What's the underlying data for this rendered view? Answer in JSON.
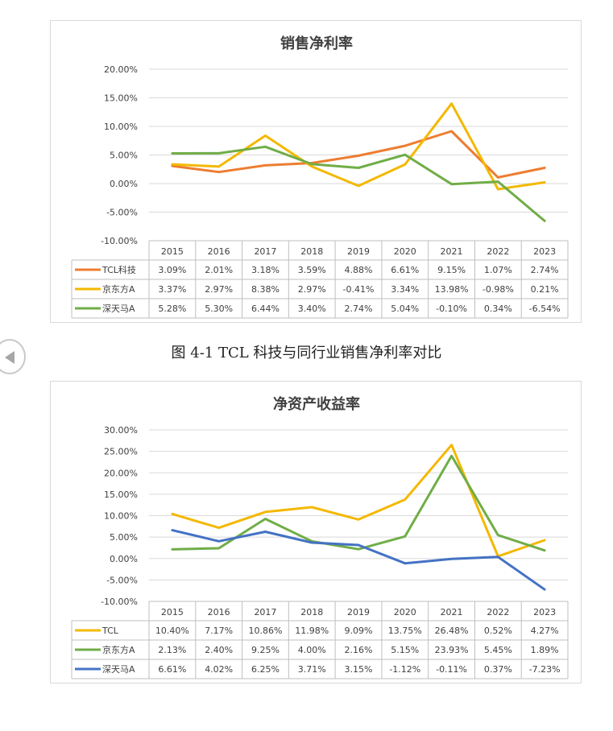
{
  "caption": "图 4-1 TCL 科技与同行业销售净利率对比",
  "colors": {
    "orange": "#ED7D31",
    "yellow": "#F4B800",
    "green": "#70AD47",
    "blue": "#4472C4"
  },
  "chart_data": [
    {
      "type": "line",
      "title": "销售净利率",
      "xlabel": "",
      "ylabel": "",
      "categories": [
        "2015",
        "2016",
        "2017",
        "2018",
        "2019",
        "2020",
        "2021",
        "2022",
        "2023"
      ],
      "ylim": [
        -10,
        20
      ],
      "yticks": [
        -10,
        -5,
        0,
        5,
        10,
        15,
        20
      ],
      "ytick_labels": [
        "-10.00%",
        "-5.00%",
        "0.00%",
        "5.00%",
        "10.00%",
        "15.00%",
        "20.00%"
      ],
      "grid": true,
      "legend": "data-table",
      "series": [
        {
          "name": "TCL科技",
          "color": "#ED7D31",
          "values": [
            3.09,
            2.01,
            3.18,
            3.59,
            4.88,
            6.61,
            9.15,
            1.07,
            2.74
          ],
          "labels": [
            "3.09%",
            "2.01%",
            "3.18%",
            "3.59%",
            "4.88%",
            "6.61%",
            "9.15%",
            "1.07%",
            "2.74%"
          ]
        },
        {
          "name": "京东方A",
          "color": "#F4B800",
          "values": [
            3.37,
            2.97,
            8.38,
            2.97,
            -0.41,
            3.34,
            13.98,
            -0.98,
            0.21
          ],
          "labels": [
            "3.37%",
            "2.97%",
            "8.38%",
            "2.97%",
            "-0.41%",
            "3.34%",
            "13.98%",
            "-0.98%",
            "0.21%"
          ]
        },
        {
          "name": "深天马A",
          "color": "#70AD47",
          "values": [
            5.28,
            5.3,
            6.44,
            3.4,
            2.74,
            5.04,
            -0.1,
            0.34,
            -6.54
          ],
          "labels": [
            "5.28%",
            "5.30%",
            "6.44%",
            "3.40%",
            "2.74%",
            "5.04%",
            "-0.10%",
            "0.34%",
            "-6.54%"
          ]
        }
      ]
    },
    {
      "type": "line",
      "title": "净资产收益率",
      "xlabel": "",
      "ylabel": "",
      "categories": [
        "2015",
        "2016",
        "2017",
        "2018",
        "2019",
        "2020",
        "2021",
        "2022",
        "2023"
      ],
      "ylim": [
        -10,
        30
      ],
      "yticks": [
        -10,
        -5,
        0,
        5,
        10,
        15,
        20,
        25,
        30
      ],
      "ytick_labels": [
        "-10.00%",
        "-5.00%",
        "0.00%",
        "5.00%",
        "10.00%",
        "15.00%",
        "20.00%",
        "25.00%",
        "30.00%"
      ],
      "grid": true,
      "legend": "data-table",
      "series": [
        {
          "name": "TCL",
          "color": "#F4B800",
          "values": [
            10.4,
            7.17,
            10.86,
            11.98,
            9.09,
            13.75,
            26.48,
            0.52,
            4.27
          ],
          "labels": [
            "10.40%",
            "7.17%",
            "10.86%",
            "11.98%",
            "9.09%",
            "13.75%",
            "26.48%",
            "0.52%",
            "4.27%"
          ]
        },
        {
          "name": "京东方A",
          "color": "#70AD47",
          "values": [
            2.13,
            2.4,
            9.25,
            4.0,
            2.16,
            5.15,
            23.93,
            5.45,
            1.89
          ],
          "labels": [
            "2.13%",
            "2.40%",
            "9.25%",
            "4.00%",
            "2.16%",
            "5.15%",
            "23.93%",
            "5.45%",
            "1.89%"
          ]
        },
        {
          "name": "深天马A",
          "color": "#4472C4",
          "values": [
            6.61,
            4.02,
            6.25,
            3.71,
            3.15,
            -1.12,
            -0.11,
            0.37,
            -7.23
          ],
          "labels": [
            "6.61%",
            "4.02%",
            "6.25%",
            "3.71%",
            "3.15%",
            "-1.12%",
            "-0.11%",
            "0.37%",
            "-7.23%"
          ]
        }
      ]
    }
  ]
}
